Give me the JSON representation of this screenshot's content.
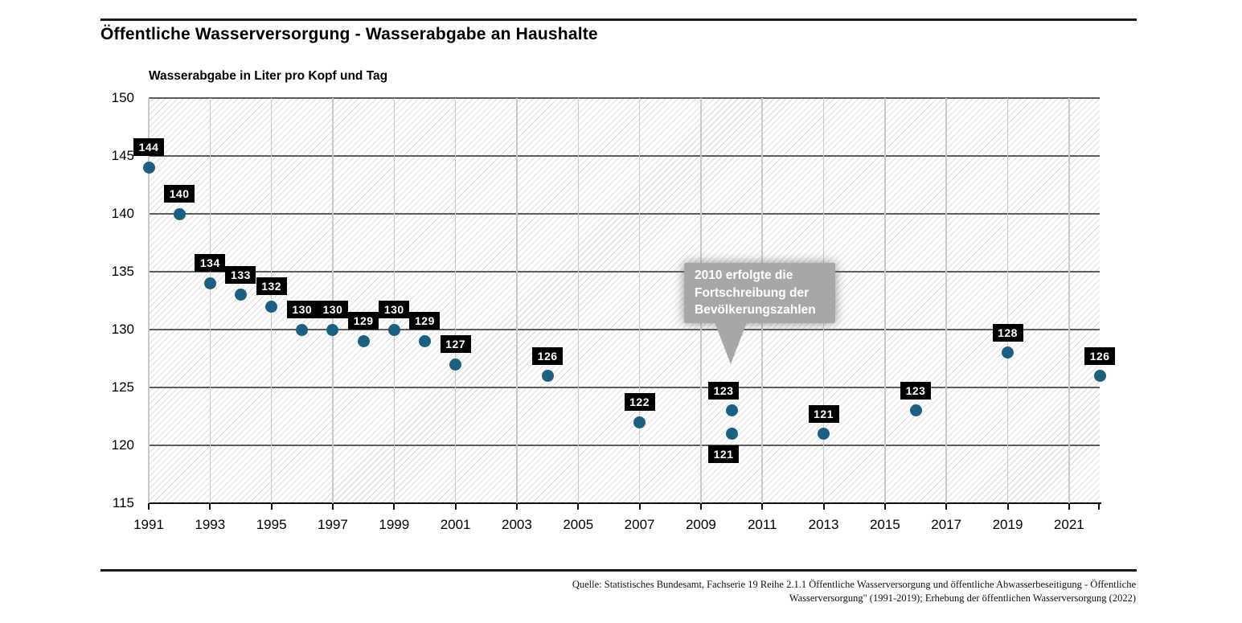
{
  "header": {
    "title": "Öffentliche Wasserversorgung - Wasserabgabe an Haushalte"
  },
  "chart_data": {
    "type": "scatter",
    "title": "Wasserabgabe in Liter pro Kopf und Tag",
    "ylabel": "Wasserabgabe in Liter pro Kopf und Tag",
    "xlabel": "",
    "xlim": [
      1991,
      2022
    ],
    "ylim": [
      115,
      150
    ],
    "y_ticks": [
      150,
      145,
      140,
      135,
      130,
      125,
      120,
      115
    ],
    "x_ticks": [
      1991,
      1993,
      1995,
      1997,
      1999,
      2001,
      2003,
      2005,
      2007,
      2009,
      2011,
      2013,
      2015,
      2017,
      2019,
      2021
    ],
    "grid": true,
    "legend": "none",
    "marker_color": "#1b6080",
    "label_bg": "#000000",
    "label_text_color": "#ffffff",
    "points": [
      {
        "year": 1991,
        "value": 144
      },
      {
        "year": 1992,
        "value": 140
      },
      {
        "year": 1993,
        "value": 134
      },
      {
        "year": 1994,
        "value": 133
      },
      {
        "year": 1995,
        "value": 132
      },
      {
        "year": 1996,
        "value": 130
      },
      {
        "year": 1997,
        "value": 130
      },
      {
        "year": 1998,
        "value": 129
      },
      {
        "year": 1999,
        "value": 130
      },
      {
        "year": 2000,
        "value": 129
      },
      {
        "year": 2001,
        "value": 127
      },
      {
        "year": 2004,
        "value": 126
      },
      {
        "year": 2007,
        "value": 122
      },
      {
        "year": 2010,
        "value": 123,
        "label_placement": "above",
        "label_dx": -10
      },
      {
        "year": 2010,
        "value": 121,
        "label_placement": "below",
        "label_dx": -10
      },
      {
        "year": 2013,
        "value": 121
      },
      {
        "year": 2016,
        "value": 123
      },
      {
        "year": 2019,
        "value": 128
      },
      {
        "year": 2022,
        "value": 126
      }
    ],
    "annotation": {
      "lines": [
        "2010 erfolgte die",
        "Fortschreibung der",
        "Bevölkerungszahlen"
      ],
      "target_year": 2010,
      "box_color": "#a7a7a7"
    }
  },
  "footer": {
    "source_line1": "Quelle: Statistisches Bundesamt, Fachserie 19  Reihe 2.1.1 Öffentliche Wasserversorgung und öffentliche Abwasserbeseitigung - Öffentliche",
    "source_line2": "Wasserversorgung\" (1991-2019); Erhebung der öffentlichen Wasserversorgung (2022)"
  }
}
